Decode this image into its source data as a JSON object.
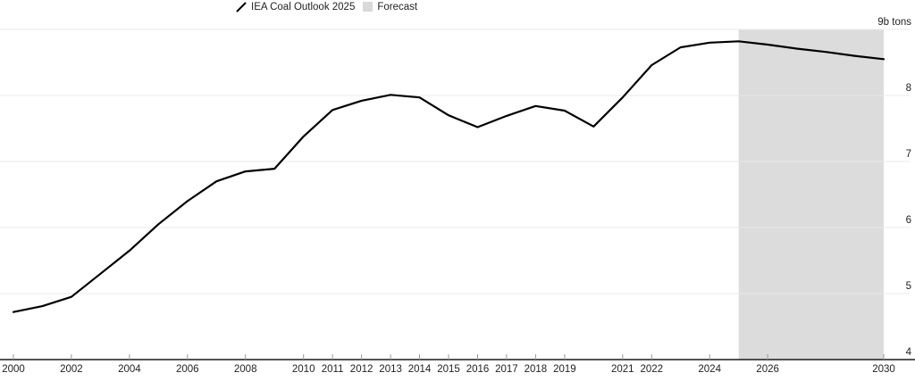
{
  "legend": {
    "series_label": "IEA Coal Outlook 2025",
    "forecast_label": "Forecast"
  },
  "colors": {
    "line": "#000000",
    "forecast_fill": "#dcdcdc",
    "gridline": "#e8e8e8",
    "axis": "#1a1a1a",
    "tick": "#999999",
    "text": "#1f1f1f",
    "legend_swatch": "#d9d9d9"
  },
  "chart_data": {
    "type": "line",
    "title": "",
    "legend_position": "top",
    "grid": "horizontal",
    "xlim": [
      2000,
      2030
    ],
    "ylim": [
      4,
      9
    ],
    "unit_label": "9b tons",
    "series": [
      {
        "name": "IEA Coal Outlook 2025",
        "x": [
          2000,
          2001,
          2002,
          2003,
          2004,
          2005,
          2006,
          2007,
          2008,
          2009,
          2010,
          2011,
          2012,
          2013,
          2014,
          2015,
          2016,
          2017,
          2018,
          2019,
          2020,
          2021,
          2022,
          2023,
          2024,
          2025,
          2026,
          2027,
          2028,
          2029,
          2030
        ],
        "values": [
          4.72,
          4.81,
          4.95,
          5.3,
          5.65,
          6.05,
          6.4,
          6.7,
          6.85,
          6.89,
          7.38,
          7.78,
          7.92,
          8.01,
          7.97,
          7.7,
          7.52,
          7.69,
          7.84,
          7.77,
          7.53,
          7.97,
          8.46,
          8.73,
          8.8,
          8.82,
          8.77,
          8.71,
          8.66,
          8.6,
          8.55
        ]
      }
    ],
    "y_ticks": [
      {
        "value": 4,
        "label": "4"
      },
      {
        "value": 5,
        "label": "5"
      },
      {
        "value": 6,
        "label": "6"
      },
      {
        "value": 7,
        "label": "7"
      },
      {
        "value": 8,
        "label": "8"
      },
      {
        "value": 9,
        "label": "9b tons"
      }
    ],
    "x_tick_labels": [
      "2000",
      "2002",
      "2004",
      "2006",
      "2008",
      "2010",
      "2011",
      "2012",
      "2013",
      "2014",
      "2015",
      "2016",
      "2017",
      "2018",
      "2019",
      "2021",
      "2022",
      "2024",
      "2026",
      "2030"
    ],
    "forecast": {
      "start": 2025,
      "end": 2030
    }
  }
}
